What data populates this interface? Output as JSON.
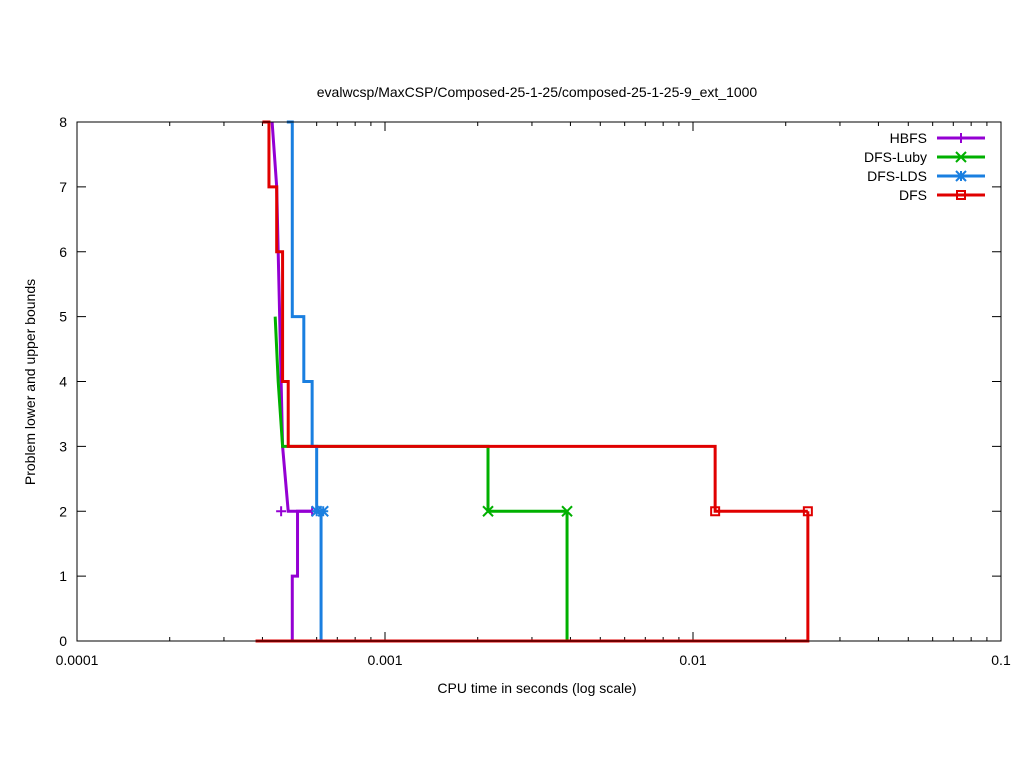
{
  "chart_data": {
    "type": "line",
    "title": "evalwcsp/MaxCSP/Composed-25-1-25/composed-25-1-25-9_ext_1000",
    "xlabel": "CPU time in seconds (log scale)",
    "ylabel": "Problem lower and upper bounds",
    "x_scale": "log",
    "xlim": [
      0.0001,
      0.1
    ],
    "ylim": [
      0,
      8
    ],
    "x_ticks": [
      {
        "value": 0.0001,
        "label": "0.0001"
      },
      {
        "value": 0.001,
        "label": "0.001"
      },
      {
        "value": 0.01,
        "label": "0.01"
      },
      {
        "value": 0.1,
        "label": "0.1"
      }
    ],
    "y_ticks": [
      {
        "value": 0,
        "label": "0"
      },
      {
        "value": 1,
        "label": "1"
      },
      {
        "value": 2,
        "label": "2"
      },
      {
        "value": 3,
        "label": "3"
      },
      {
        "value": 4,
        "label": "4"
      },
      {
        "value": 5,
        "label": "5"
      },
      {
        "value": 6,
        "label": "6"
      },
      {
        "value": 7,
        "label": "7"
      },
      {
        "value": 8,
        "label": "8"
      }
    ],
    "grid": false,
    "legend_position": "top-right",
    "series": [
      {
        "name": "HBFS",
        "color": "#9400d3",
        "marker": "plus",
        "upper": [
          [
            0.00043,
            8
          ],
          [
            0.000445,
            7
          ],
          [
            0.000455,
            5
          ],
          [
            0.00046,
            4
          ],
          [
            0.000465,
            3
          ],
          [
            0.000485,
            2
          ],
          [
            0.00058,
            2
          ]
        ],
        "lower": [
          [
            0.0005,
            0
          ],
          [
            0.0005,
            1
          ],
          [
            0.00052,
            1
          ],
          [
            0.00052,
            2
          ],
          [
            0.00058,
            2
          ]
        ],
        "markers": [
          [
            0.00046,
            2
          ],
          [
            0.00058,
            2
          ]
        ]
      },
      {
        "name": "DFS-Luby",
        "color": "#00b000",
        "marker": "x",
        "upper": [
          [
            0.00044,
            5
          ],
          [
            0.00045,
            4
          ],
          [
            0.000465,
            3
          ],
          [
            0.00216,
            3
          ],
          [
            0.00216,
            2
          ],
          [
            0.0039,
            2
          ]
        ],
        "lower": [
          [
            0.00041,
            0
          ],
          [
            0.0039,
            0
          ],
          [
            0.0039,
            2
          ]
        ],
        "markers": [
          [
            0.00216,
            2
          ],
          [
            0.0039,
            2
          ]
        ]
      },
      {
        "name": "DFS-LDS",
        "color": "#1a7fe0",
        "marker": "star",
        "upper": [
          [
            0.00048,
            8
          ],
          [
            0.0005,
            8
          ],
          [
            0.0005,
            5
          ],
          [
            0.000545,
            5
          ],
          [
            0.000545,
            4
          ],
          [
            0.00058,
            4
          ],
          [
            0.00058,
            3
          ],
          [
            0.0006,
            3
          ],
          [
            0.0006,
            2
          ],
          [
            0.00063,
            2
          ]
        ],
        "lower": [
          [
            0.00062,
            0
          ],
          [
            0.00062,
            2
          ]
        ],
        "markers": [
          [
            0.0006,
            2
          ],
          [
            0.00063,
            2
          ]
        ]
      },
      {
        "name": "DFS",
        "color": "#e00000",
        "marker": "square",
        "upper": [
          [
            0.0004,
            8
          ],
          [
            0.00042,
            8
          ],
          [
            0.00042,
            7
          ],
          [
            0.000445,
            7
          ],
          [
            0.000445,
            6
          ],
          [
            0.000465,
            6
          ],
          [
            0.000465,
            4
          ],
          [
            0.000485,
            4
          ],
          [
            0.000485,
            3
          ],
          [
            0.0118,
            3
          ],
          [
            0.0118,
            2
          ],
          [
            0.0236,
            2
          ]
        ],
        "lower": [
          [
            0.00038,
            0
          ],
          [
            0.0236,
            0
          ],
          [
            0.0236,
            2
          ]
        ],
        "markers": [
          [
            0.0118,
            2
          ],
          [
            0.0236,
            2
          ]
        ]
      }
    ]
  }
}
